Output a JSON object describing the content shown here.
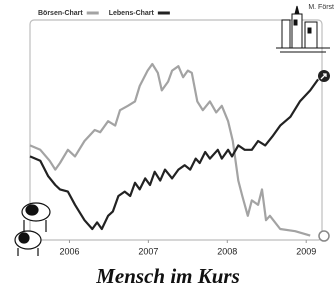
{
  "chart_data": {
    "type": "line",
    "title": "Mensch im Kurs",
    "signature": "M. Först",
    "xlim": [
      2005.5,
      2009.2
    ],
    "xticks": [
      2006,
      2007,
      2008,
      2009
    ],
    "ylim": [
      0,
      100
    ],
    "series": [
      {
        "name": "Börsen-Chart",
        "color": "#a3a3a3",
        "x": [
          2005.5,
          2005.63,
          2005.75,
          2005.82,
          2005.88,
          2005.98,
          2006.07,
          2006.19,
          2006.32,
          2006.39,
          2006.49,
          2006.58,
          2006.64,
          2006.74,
          2006.83,
          2006.89,
          2006.99,
          2007.05,
          2007.12,
          2007.17,
          2007.25,
          2007.3,
          2007.38,
          2007.44,
          2007.5,
          2007.55,
          2007.62,
          2007.69,
          2007.78,
          2007.86,
          2007.93,
          2008.01,
          2008.07,
          2008.14,
          2008.19,
          2008.26,
          2008.31,
          2008.39,
          2008.44,
          2008.49,
          2008.54,
          2008.67,
          2008.86,
          2009.05
        ],
        "values": [
          43,
          41,
          36,
          32,
          35,
          41,
          38,
          45,
          50,
          49,
          54,
          52,
          59,
          61,
          63,
          70,
          77,
          80,
          76,
          68,
          72,
          77,
          79,
          74,
          77,
          76,
          63,
          59,
          63,
          58,
          61,
          54,
          45,
          27,
          20,
          11,
          18,
          16,
          23,
          9,
          11,
          5,
          4,
          2
        ]
      },
      {
        "name": "Lebens-Chart",
        "color": "#222222",
        "x": [
          2005.5,
          2005.63,
          2005.73,
          2005.82,
          2005.88,
          2005.98,
          2006.07,
          2006.19,
          2006.29,
          2006.35,
          2006.41,
          2006.49,
          2006.55,
          2006.62,
          2006.7,
          2006.77,
          2006.83,
          2006.89,
          2006.96,
          2007.02,
          2007.08,
          2007.15,
          2007.21,
          2007.3,
          2007.38,
          2007.46,
          2007.53,
          2007.6,
          2007.65,
          2007.72,
          2007.78,
          2007.88,
          2007.93,
          2008.01,
          2008.06,
          2008.14,
          2008.22,
          2008.31,
          2008.39,
          2008.48,
          2008.57,
          2008.67,
          2008.8,
          2008.92,
          2009.05,
          2009.15
        ],
        "values": [
          38,
          36,
          29,
          25,
          23,
          22,
          16,
          9,
          5,
          8,
          5,
          11,
          13,
          20,
          22,
          20,
          26,
          23,
          28,
          25,
          31,
          27,
          32,
          28,
          32,
          34,
          32,
          37,
          35,
          40,
          37,
          41,
          37,
          41,
          38,
          43,
          41,
          41,
          45,
          43,
          47,
          52,
          56,
          63,
          68,
          73
        ]
      }
    ]
  }
}
